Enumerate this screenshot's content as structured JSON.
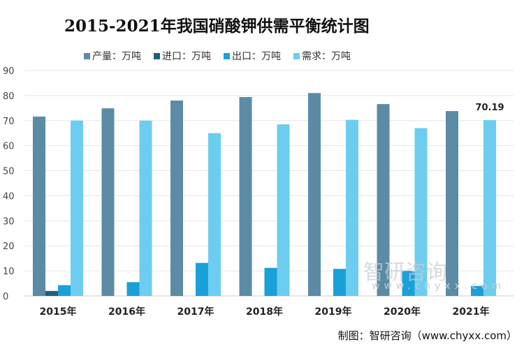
{
  "chart_data": {
    "type": "bar",
    "title": "2015-2021年我国硝酸钾供需平衡统计图",
    "categories": [
      "2015年",
      "2016年",
      "2017年",
      "2018年",
      "2019年",
      "2020年",
      "2021年"
    ],
    "series": [
      {
        "name": "产量：万吨",
        "color": "#5b8ba5",
        "values": [
          71.6,
          74.9,
          78,
          79.4,
          81,
          76.6,
          73.8
        ]
      },
      {
        "name": "进口：万吨",
        "color": "#1f5f80",
        "values": [
          2,
          0,
          0,
          0,
          0,
          0,
          0
        ]
      },
      {
        "name": "出口：万吨",
        "color": "#1aa0d8",
        "values": [
          4.3,
          5.5,
          13.2,
          11.2,
          10.8,
          10,
          4
        ]
      },
      {
        "name": "需求：万吨",
        "color": "#6ccdf0",
        "values": [
          70,
          70,
          65,
          68.5,
          70.3,
          67,
          70.19
        ]
      }
    ],
    "ylim": [
      0,
      90
    ],
    "yticks": [
      "0",
      "10",
      "20",
      "30",
      "40",
      "50",
      "60",
      "70",
      "80",
      "90"
    ],
    "grid": true,
    "legend": "top",
    "data_labels": [
      {
        "series": 3,
        "index": 6,
        "text": "70.19"
      }
    ]
  },
  "credit": "制图：智研咨询（www.chyxx.com）",
  "watermark": {
    "name": "智研咨询",
    "url": "www.chyxx.com"
  }
}
